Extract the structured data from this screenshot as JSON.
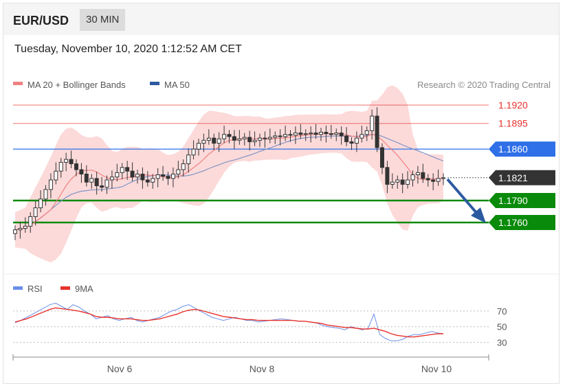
{
  "header": {
    "pair": "EUR/USD",
    "timeframe": "30 MIN"
  },
  "datetime": "Tuesday, November 10, 2020 1:12:52 AM CET",
  "attribution": "Research © 2020 Trading Central",
  "chart_data": [
    {
      "type": "candlestick",
      "title": "EUR/USD",
      "legend": [
        {
          "name": "MA 20 + Bollinger Bands",
          "color": "#f08080"
        },
        {
          "name": "MA 50",
          "color": "#2c5aa0"
        }
      ],
      "legend_position": "top-left",
      "y_range": [
        1.1705,
        1.194
      ],
      "x_tick_labels": [
        "Nov 6",
        "Nov 8",
        "Nov 10"
      ],
      "levels": [
        {
          "label": "1.1920",
          "value": 1.192,
          "kind": "resistance",
          "color": "#e8312b"
        },
        {
          "label": "1.1895",
          "value": 1.1895,
          "kind": "resistance",
          "color": "#e8312b"
        },
        {
          "label": "1.1860",
          "value": 1.186,
          "kind": "pivot",
          "color": "#2f6fe8"
        },
        {
          "label": "1.1821",
          "value": 1.1821,
          "kind": "last price",
          "color": "#333333"
        },
        {
          "label": "1.1790",
          "value": 1.179,
          "kind": "support",
          "color": "#0a8a0a"
        },
        {
          "label": "1.1760",
          "value": 1.176,
          "kind": "support",
          "color": "#0a8a0a"
        }
      ],
      "close": [
        1.175,
        1.1752,
        1.1755,
        1.1768,
        1.178,
        1.1792,
        1.1805,
        1.1818,
        1.183,
        1.1842,
        1.1846,
        1.184,
        1.1832,
        1.1826,
        1.1815,
        1.182,
        1.181,
        1.1808,
        1.1818,
        1.1822,
        1.1828,
        1.1835,
        1.183,
        1.1822,
        1.1826,
        1.1818,
        1.1815,
        1.182,
        1.1825,
        1.1823,
        1.182,
        1.1826,
        1.1832,
        1.184,
        1.1852,
        1.186,
        1.1868,
        1.1872,
        1.1875,
        1.1868,
        1.1874,
        1.188,
        1.1877,
        1.1872,
        1.1874,
        1.1876,
        1.187,
        1.1872,
        1.1875,
        1.1874,
        1.1876,
        1.1878,
        1.1877,
        1.188,
        1.1879,
        1.1882,
        1.188,
        1.1881,
        1.1882,
        1.188,
        1.1883,
        1.1881,
        1.188,
        1.1882,
        1.1878,
        1.187,
        1.1868,
        1.1875,
        1.188,
        1.1885,
        1.1905,
        1.1862,
        1.1835,
        1.1812,
        1.1815,
        1.1818,
        1.1812,
        1.1818,
        1.1825,
        1.1828,
        1.182,
        1.1818,
        1.1816,
        1.182,
        1.1821
      ]
    },
    {
      "type": "line",
      "legend": [
        {
          "name": "RSI",
          "color": "#6a8fe8"
        },
        {
          "name": "9MA",
          "color": "#e8312b"
        }
      ],
      "y_ticks": [
        70,
        50,
        30
      ],
      "y_range": [
        20,
        90
      ],
      "x_tick_labels": [
        "Nov 6",
        "Nov 8",
        "Nov 10"
      ],
      "series": [
        {
          "name": "RSI",
          "values": [
            55,
            58,
            62,
            66,
            70,
            74,
            78,
            80,
            76,
            72,
            78,
            75,
            70,
            66,
            60,
            62,
            64,
            60,
            58,
            60,
            62,
            58,
            56,
            58,
            60,
            62,
            66,
            70,
            72,
            76,
            78,
            74,
            70,
            66,
            62,
            60,
            58,
            60,
            62,
            60,
            58,
            58,
            56,
            57,
            58,
            59,
            60,
            59,
            58,
            57,
            57,
            56,
            55,
            52,
            50,
            49,
            48,
            46,
            50,
            48,
            46,
            48,
            66,
            40,
            35,
            32,
            32,
            34,
            38,
            40,
            40,
            42,
            44,
            42,
            41
          ]
        },
        {
          "name": "9MA",
          "values": [
            56,
            58,
            60,
            63,
            66,
            69,
            72,
            74,
            73,
            72,
            71,
            70,
            68,
            66,
            63,
            62,
            62,
            61,
            60,
            60,
            60,
            59,
            58,
            58,
            59,
            60,
            62,
            64,
            66,
            69,
            71,
            72,
            71,
            69,
            67,
            65,
            63,
            62,
            61,
            60,
            59,
            59,
            58,
            58,
            58,
            58,
            58,
            58,
            58,
            57,
            57,
            56,
            55,
            54,
            52,
            51,
            50,
            49,
            49,
            48,
            47,
            47,
            48,
            46,
            44,
            41,
            39,
            38,
            37,
            37,
            38,
            39,
            40,
            41,
            41
          ]
        }
      ]
    }
  ]
}
